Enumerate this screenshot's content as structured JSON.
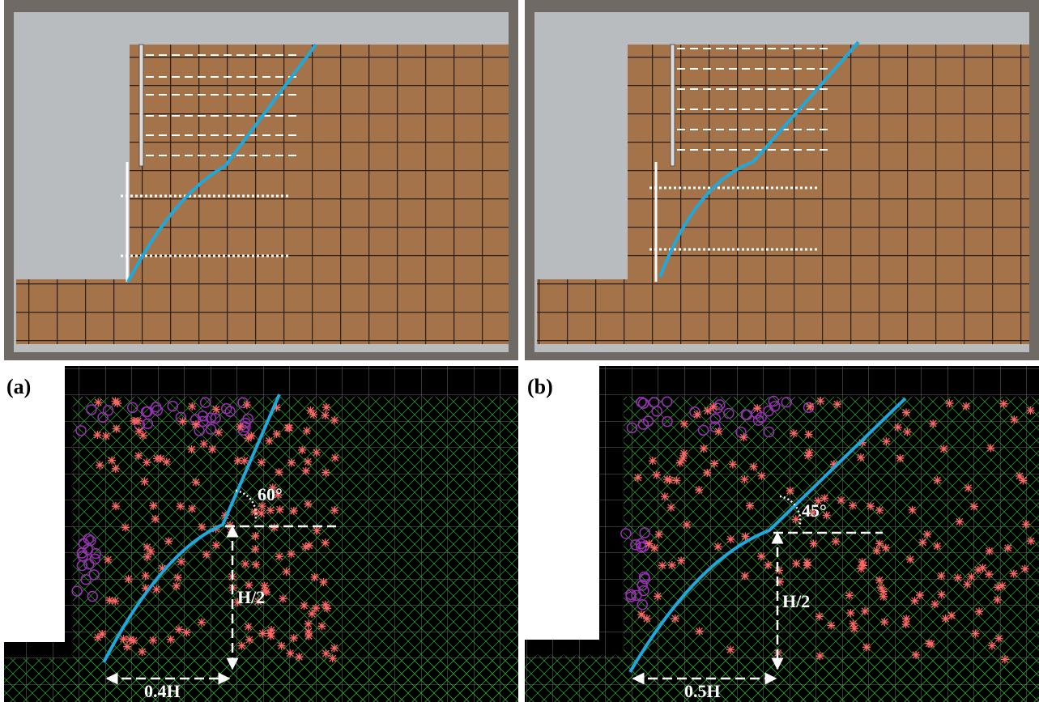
{
  "panels": [
    {
      "label": "(a)",
      "angle": "60°",
      "height_label": "H/2",
      "width_label": "0.4H"
    },
    {
      "label": "(b)",
      "angle": "45°",
      "height_label": "H/2",
      "width_label": "0.5H"
    }
  ]
}
